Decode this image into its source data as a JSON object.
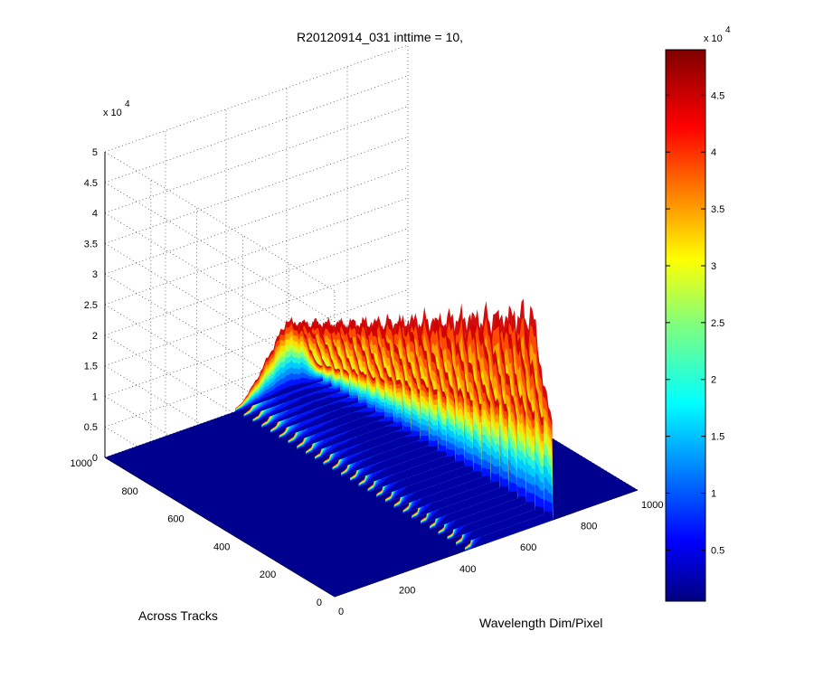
{
  "chart_data": {
    "type": "surface",
    "title": "R20120914_031 inttime = 10,",
    "xlabel": "Wavelength Dim/Pixel",
    "ylabel": "Across Tracks",
    "zlabel": "",
    "x_ticks": [
      "0",
      "200",
      "400",
      "600",
      "800",
      "1000"
    ],
    "y_ticks": [
      "0",
      "200",
      "400",
      "600",
      "800",
      "1000"
    ],
    "z_ticks": [
      "0",
      "0.5",
      "1",
      "1.5",
      "2",
      "2.5",
      "3",
      "3.5",
      "4",
      "4.5",
      "5"
    ],
    "z_multiplier": "x 10",
    "z_multiplier_exp": "4",
    "xlim": [
      0,
      1000
    ],
    "ylim": [
      0,
      1000
    ],
    "zlim": [
      0,
      50000
    ],
    "grid": true,
    "colormap": "jet",
    "colorbar": {
      "ticks": [
        "0.5",
        "1",
        "1.5",
        "2",
        "2.5",
        "3",
        "3.5",
        "4",
        "4.5"
      ],
      "multiplier": "x 10",
      "multiplier_exp": "4",
      "range": [
        500,
        49000
      ]
    },
    "surface": {
      "wavelength_pixel": [
        0,
        100,
        200,
        250,
        300,
        350,
        400,
        450,
        500,
        550,
        600,
        650,
        700,
        800,
        900,
        1000
      ],
      "across_track_extent": [
        0,
        1000
      ],
      "peak_counts_near_track_0": [
        0,
        0,
        0,
        0,
        0,
        0,
        0,
        1000,
        23000,
        26000,
        31000,
        36000,
        20000,
        0,
        0,
        0
      ],
      "peak_counts_near_track_1000": [
        0,
        0,
        0,
        0,
        0,
        0,
        0,
        900,
        4000,
        8000,
        12000,
        10000,
        3000,
        0,
        0,
        0
      ]
    }
  }
}
